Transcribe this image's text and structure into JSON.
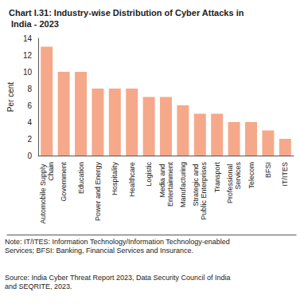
{
  "chart_data": {
    "type": "bar",
    "title": "Chart I.31: Industry-wise Distribution of Cyber Attacks in India - 2023",
    "y_label": "Per cent",
    "categories": [
      "Automobile Supply Chain",
      "Government",
      "Education",
      "Power and Energy",
      "Hospitality",
      "Healthcare",
      "Logistic",
      "Media and Entertainment",
      "Manufacturing",
      "Strategic and Public Enterprises",
      "Transport",
      "Professional Services",
      "Telecom",
      "BFSI",
      "IT/ITES"
    ],
    "values": [
      13,
      10,
      10,
      8,
      8,
      8,
      7,
      7,
      6,
      5,
      5,
      4,
      4,
      3,
      2
    ],
    "color": "#f5a98a",
    "ylim": [
      0,
      14
    ],
    "yticks": [
      0,
      2,
      4,
      6,
      8,
      10,
      12,
      14
    ],
    "grid": false,
    "note": "Note: IT/ITES: Information Technology/Information Technology-enabled Services; BFSI: Banking, Financial Services and Insurance.",
    "source": "Source: India Cyber Threat Report 2023, Data Security Council of India and SEQRITE, 2023."
  }
}
